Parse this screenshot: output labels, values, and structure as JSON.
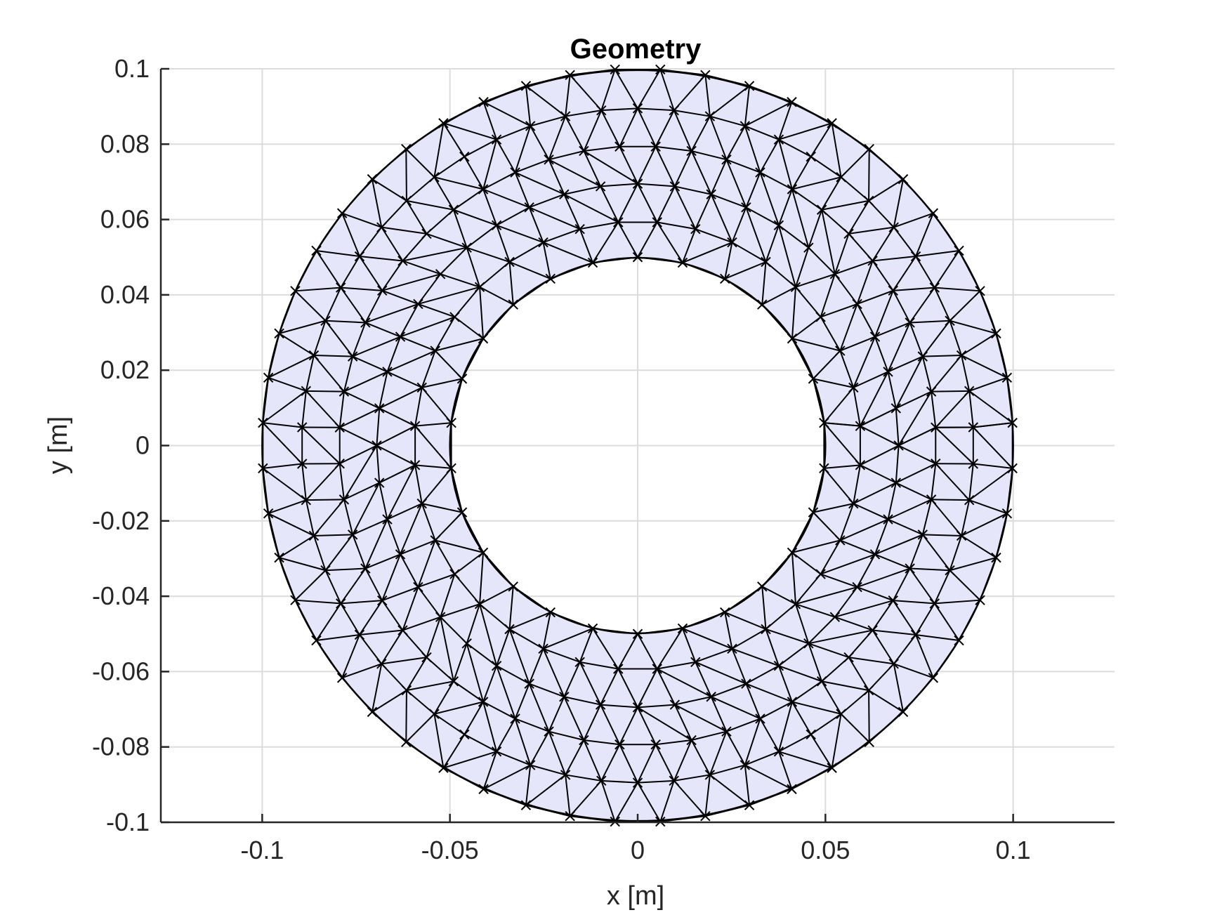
{
  "chart_data": {
    "type": "mesh",
    "title": "Geometry",
    "xlabel": "x [m]",
    "ylabel": "y [m]",
    "xlim": [
      -0.127,
      0.127
    ],
    "ylim": [
      -0.1,
      0.1
    ],
    "xticks": [
      -0.1,
      -0.05,
      0,
      0.05,
      0.1
    ],
    "xtick_labels": [
      "-0.1",
      "-0.05",
      "0",
      "0.05",
      "0.1"
    ],
    "yticks": [
      -0.1,
      -0.08,
      -0.06,
      -0.04,
      -0.02,
      0,
      0.02,
      0.04,
      0.06,
      0.08,
      0.1
    ],
    "ytick_labels": [
      "-0.1",
      "-0.08",
      "-0.06",
      "-0.04",
      "-0.02",
      "0",
      "0.02",
      "0.04",
      "0.06",
      "0.08",
      "0.1"
    ],
    "grid": true,
    "geometry": {
      "shape": "annulus",
      "center": [
        0,
        0
      ],
      "inner_radius": 0.05,
      "outer_radius": 0.1
    },
    "mesh": {
      "element_type": "triangle",
      "node_marker": "x",
      "rings": [
        {
          "r": 0.05,
          "count": 26
        },
        {
          "r": 0.0595,
          "count": 36
        },
        {
          "r": 0.0695,
          "count": 44
        },
        {
          "r": 0.0795,
          "count": 52
        },
        {
          "r": 0.0895,
          "count": 58
        },
        {
          "r": 0.1,
          "count": 52
        }
      ]
    },
    "colors": {
      "fill": "#e6e6fb",
      "edges": "#000000",
      "markers": "#000000",
      "grid": "#dcdcdc",
      "axes": "#262626"
    }
  }
}
